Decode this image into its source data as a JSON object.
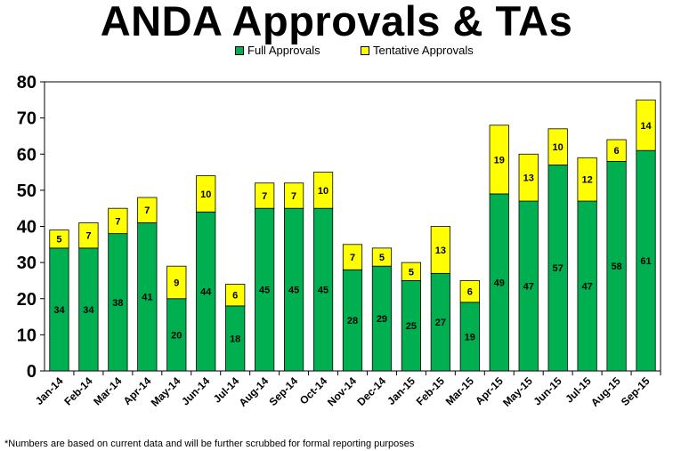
{
  "chart_data": {
    "type": "bar",
    "stacked": true,
    "title": "ANDA Approvals & TAs",
    "xlabel": "",
    "ylabel": "",
    "ylim": [
      0,
      80
    ],
    "yticks": [
      "0",
      "10",
      "20",
      "30",
      "40",
      "50",
      "60",
      "70",
      "80"
    ],
    "grid": false,
    "legend_position": "top-center",
    "categories": [
      "Jan-14",
      "Feb-14",
      "Mar-14",
      "Apr-14",
      "May-14",
      "Jun-14",
      "Jul-14",
      "Aug-14",
      "Sep-14",
      "Oct-14",
      "Nov-14",
      "Dec-14",
      "Jan-15",
      "Feb-15",
      "Mar-15",
      "Apr-15",
      "May-15",
      "Jun-15",
      "Jul-15",
      "Aug-15",
      "Sep-15"
    ],
    "series": [
      {
        "name": "Full Approvals",
        "color": "#00b050",
        "values": [
          34,
          34,
          38,
          41,
          20,
          44,
          18,
          45,
          45,
          45,
          28,
          29,
          25,
          27,
          19,
          49,
          47,
          57,
          47,
          58,
          61
        ]
      },
      {
        "name": "Tentative Approvals",
        "color": "#ffff00",
        "values": [
          5,
          7,
          7,
          7,
          9,
          10,
          6,
          7,
          7,
          10,
          7,
          5,
          5,
          13,
          6,
          19,
          13,
          10,
          12,
          6,
          14
        ]
      }
    ]
  },
  "footnote": "*Numbers are based on current data and will be further scrubbed for formal reporting purposes"
}
